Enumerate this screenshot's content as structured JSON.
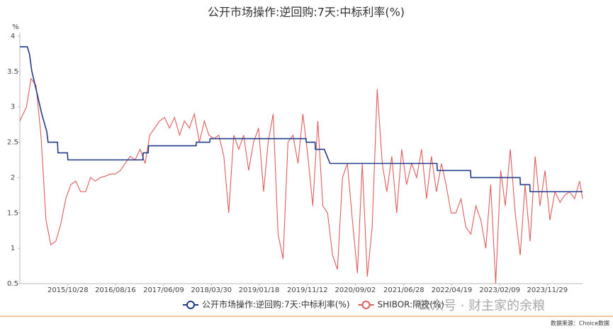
{
  "chart_data": {
    "type": "line",
    "title": "公开市场操作:逆回购:7天:中标利率(%)",
    "y_unit": "%",
    "xlim": [
      "2015/01/05",
      "2024/07/03"
    ],
    "xticks": [
      "2015/10/28",
      "2016/08/16",
      "2017/06/09",
      "2018/03/30",
      "2019/01/18",
      "2019/11/12",
      "2020/09/02",
      "2021/06/28",
      "2022/04/19",
      "2023/02/09",
      "2023/11/29"
    ],
    "ylim": [
      0.5,
      4
    ],
    "yticks": [
      0.5,
      1,
      1.5,
      2,
      2.5,
      3,
      3.5,
      4
    ],
    "grid": false,
    "series": [
      {
        "name": "公开市场操作:逆回购:7天:中标利率(%)",
        "color": "#1f3b8a",
        "x": [
          "2015/01/05",
          "2015/02/20",
          "2015/03/05",
          "2015/03/20",
          "2015/04/20",
          "2015/05/20",
          "2015/06/20",
          "2015/06/28",
          "2015/08/25",
          "2015/08/28",
          "2015/10/25",
          "2015/10/28",
          "2017/02/01",
          "2017/02/03",
          "2017/03/06",
          "2017/03/08",
          "2017/12/26",
          "2017/12/28",
          "2018/03/20",
          "2018/03/22",
          "2019/11/03",
          "2019/11/05",
          "2019/12/29",
          "2019/12/31",
          "2020/02/24",
          "2020/03/30",
          "2022/01/18",
          "2022/01/20",
          "2022/08/13",
          "2022/08/15",
          "2023/06/14",
          "2023/06/16",
          "2023/08/13",
          "2023/08/15",
          "2024/07/03"
        ],
        "values": [
          3.85,
          3.85,
          3.75,
          3.5,
          3.2,
          2.9,
          2.65,
          2.5,
          2.5,
          2.35,
          2.35,
          2.25,
          2.25,
          2.35,
          2.35,
          2.45,
          2.45,
          2.5,
          2.5,
          2.55,
          2.55,
          2.5,
          2.5,
          2.4,
          2.4,
          2.2,
          2.2,
          2.1,
          2.1,
          2.0,
          2.0,
          1.9,
          1.9,
          1.8,
          1.8
        ]
      },
      {
        "name": "SHIBOR:隔夜(%)",
        "color": "#e05c5c",
        "x": [
          "2015/01/05",
          "2015/02/15",
          "2015/03/15",
          "2015/04/15",
          "2015/05/15",
          "2015/06/15",
          "2015/07/15",
          "2015/08/15",
          "2015/09/15",
          "2015/10/15",
          "2015/11/15",
          "2015/12/15",
          "2016/01/15",
          "2016/02/15",
          "2016/03/15",
          "2016/04/15",
          "2016/05/15",
          "2016/06/15",
          "2016/07/15",
          "2016/08/15",
          "2016/09/15",
          "2016/10/15",
          "2016/11/15",
          "2016/12/15",
          "2017/01/15",
          "2017/02/15",
          "2017/03/15",
          "2017/04/15",
          "2017/05/15",
          "2017/06/15",
          "2017/07/15",
          "2017/08/15",
          "2017/09/15",
          "2017/10/15",
          "2017/11/15",
          "2017/12/15",
          "2018/01/15",
          "2018/02/15",
          "2018/03/15",
          "2018/04/15",
          "2018/05/15",
          "2018/06/15",
          "2018/07/15",
          "2018/08/15",
          "2018/09/15",
          "2018/10/15",
          "2018/11/15",
          "2018/12/15",
          "2019/01/15",
          "2019/02/15",
          "2019/03/15",
          "2019/04/15",
          "2019/05/15",
          "2019/06/15",
          "2019/07/15",
          "2019/08/15",
          "2019/09/15",
          "2019/10/15",
          "2019/11/15",
          "2019/12/15",
          "2020/01/15",
          "2020/02/15",
          "2020/03/15",
          "2020/04/15",
          "2020/05/15",
          "2020/06/15",
          "2020/07/15",
          "2020/08/15",
          "2020/09/15",
          "2020/10/15",
          "2020/11/15",
          "2020/12/15",
          "2021/01/15",
          "2021/02/15",
          "2021/03/15",
          "2021/04/15",
          "2021/05/15",
          "2021/06/15",
          "2021/07/15",
          "2021/08/15",
          "2021/09/15",
          "2021/10/15",
          "2021/11/15",
          "2021/12/15",
          "2022/01/15",
          "2022/02/15",
          "2022/03/15",
          "2022/04/15",
          "2022/05/15",
          "2022/06/15",
          "2022/07/15",
          "2022/08/15",
          "2022/09/15",
          "2022/10/15",
          "2022/11/15",
          "2022/12/15",
          "2023/01/15",
          "2023/02/15",
          "2023/03/15",
          "2023/04/15",
          "2023/05/15",
          "2023/06/15",
          "2023/07/15",
          "2023/08/15",
          "2023/09/15",
          "2023/10/15",
          "2023/11/15",
          "2023/12/15",
          "2024/01/15",
          "2024/02/15",
          "2024/03/15",
          "2024/04/15",
          "2024/05/15",
          "2024/06/15",
          "2024/07/03"
        ],
        "values": [
          2.8,
          3.0,
          3.4,
          3.3,
          2.6,
          1.4,
          1.05,
          1.1,
          1.35,
          1.7,
          1.9,
          1.95,
          1.8,
          1.8,
          2.0,
          1.95,
          2.0,
          2.02,
          2.05,
          2.05,
          2.1,
          2.2,
          2.3,
          2.25,
          2.4,
          2.2,
          2.6,
          2.7,
          2.8,
          2.85,
          2.7,
          2.85,
          2.6,
          2.8,
          2.7,
          2.9,
          2.5,
          2.8,
          2.6,
          2.55,
          2.6,
          2.3,
          1.5,
          2.6,
          2.4,
          2.6,
          2.1,
          2.5,
          2.7,
          1.8,
          2.5,
          2.9,
          1.2,
          0.85,
          2.5,
          2.6,
          2.2,
          2.9,
          2.3,
          1.6,
          2.8,
          1.6,
          1.5,
          0.9,
          0.7,
          2.0,
          2.2,
          1.4,
          0.65,
          2.2,
          0.6,
          1.3,
          3.25,
          2.2,
          1.8,
          2.3,
          1.5,
          2.4,
          1.9,
          2.2,
          2.0,
          2.4,
          1.7,
          2.3,
          1.8,
          2.2,
          1.9,
          1.5,
          1.5,
          1.7,
          1.3,
          1.2,
          1.6,
          1.4,
          1.0,
          1.9,
          0.5,
          2.1,
          1.6,
          2.4,
          1.5,
          0.9,
          1.9,
          1.1,
          2.3,
          1.6,
          2.1,
          1.4,
          1.8,
          1.65,
          1.75,
          1.8,
          1.7,
          1.95,
          1.7
        ]
      }
    ],
    "watermark": "公众号 · 财主家的余粮",
    "source": "数据来源：Choice数据"
  }
}
